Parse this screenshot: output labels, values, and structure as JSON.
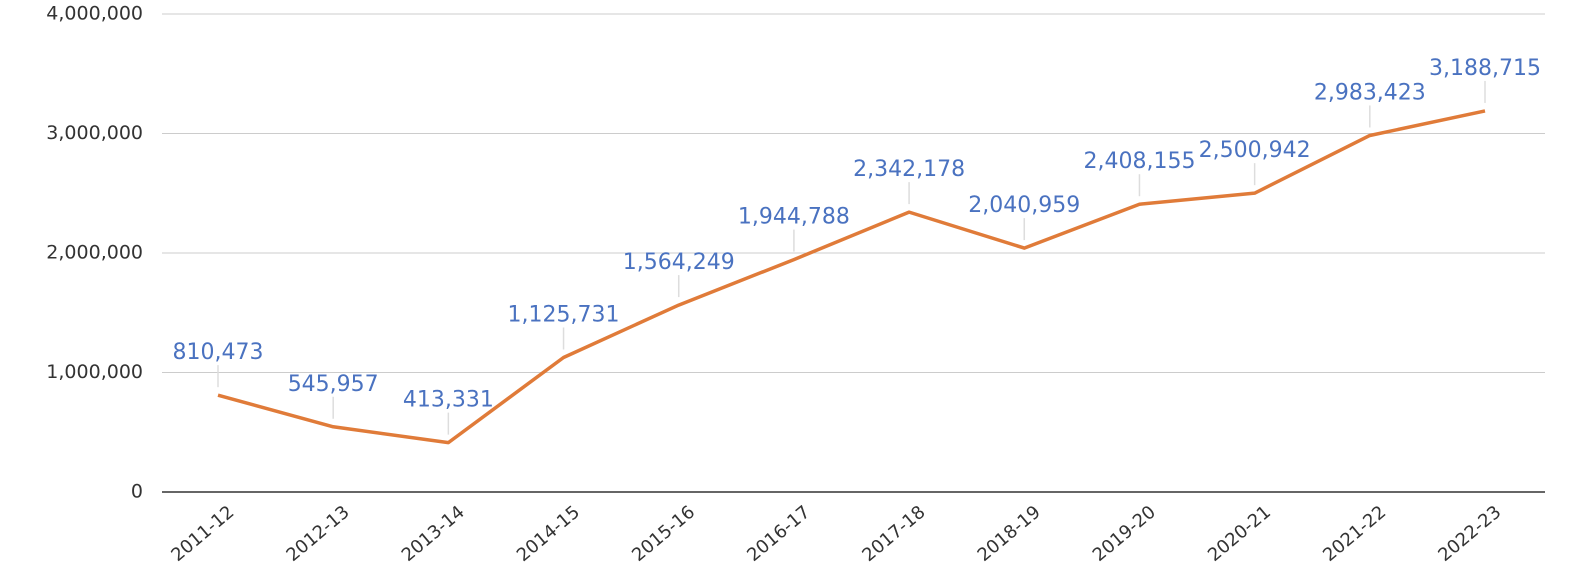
{
  "chart_data": {
    "type": "line",
    "categories": [
      "2011-12",
      "2012-13",
      "2013-14",
      "2014-15",
      "2015-16",
      "2016-17",
      "2017-18",
      "2018-19",
      "2019-20",
      "2020-21",
      "2021-22",
      "2022-23"
    ],
    "series": [
      {
        "name": null,
        "color": "#e07b39",
        "values": [
          810473,
          545957,
          413331,
          1125731,
          1564249,
          1944788,
          2342178,
          2040959,
          2408155,
          2500942,
          2983423,
          3188715
        ],
        "value_labels": [
          "810,473",
          "545,957",
          "413,331",
          "1,125,731",
          "1,564,249",
          "1,944,788",
          "2,342,178",
          "2,040,959",
          "2,408,155",
          "2,500,942",
          "2,983,423",
          "3,188,715"
        ]
      }
    ],
    "ylim": [
      0,
      4000000
    ],
    "yticks": [
      0,
      {
        "value": 1000000,
        "label": "1,000,000"
      },
      {
        "value": 2000000,
        "label": "2,000,000"
      },
      {
        "value": 3000000,
        "label": "3,000,000"
      },
      {
        "value": 4000000,
        "label": "4,000,000"
      }
    ],
    "grid": true
  }
}
